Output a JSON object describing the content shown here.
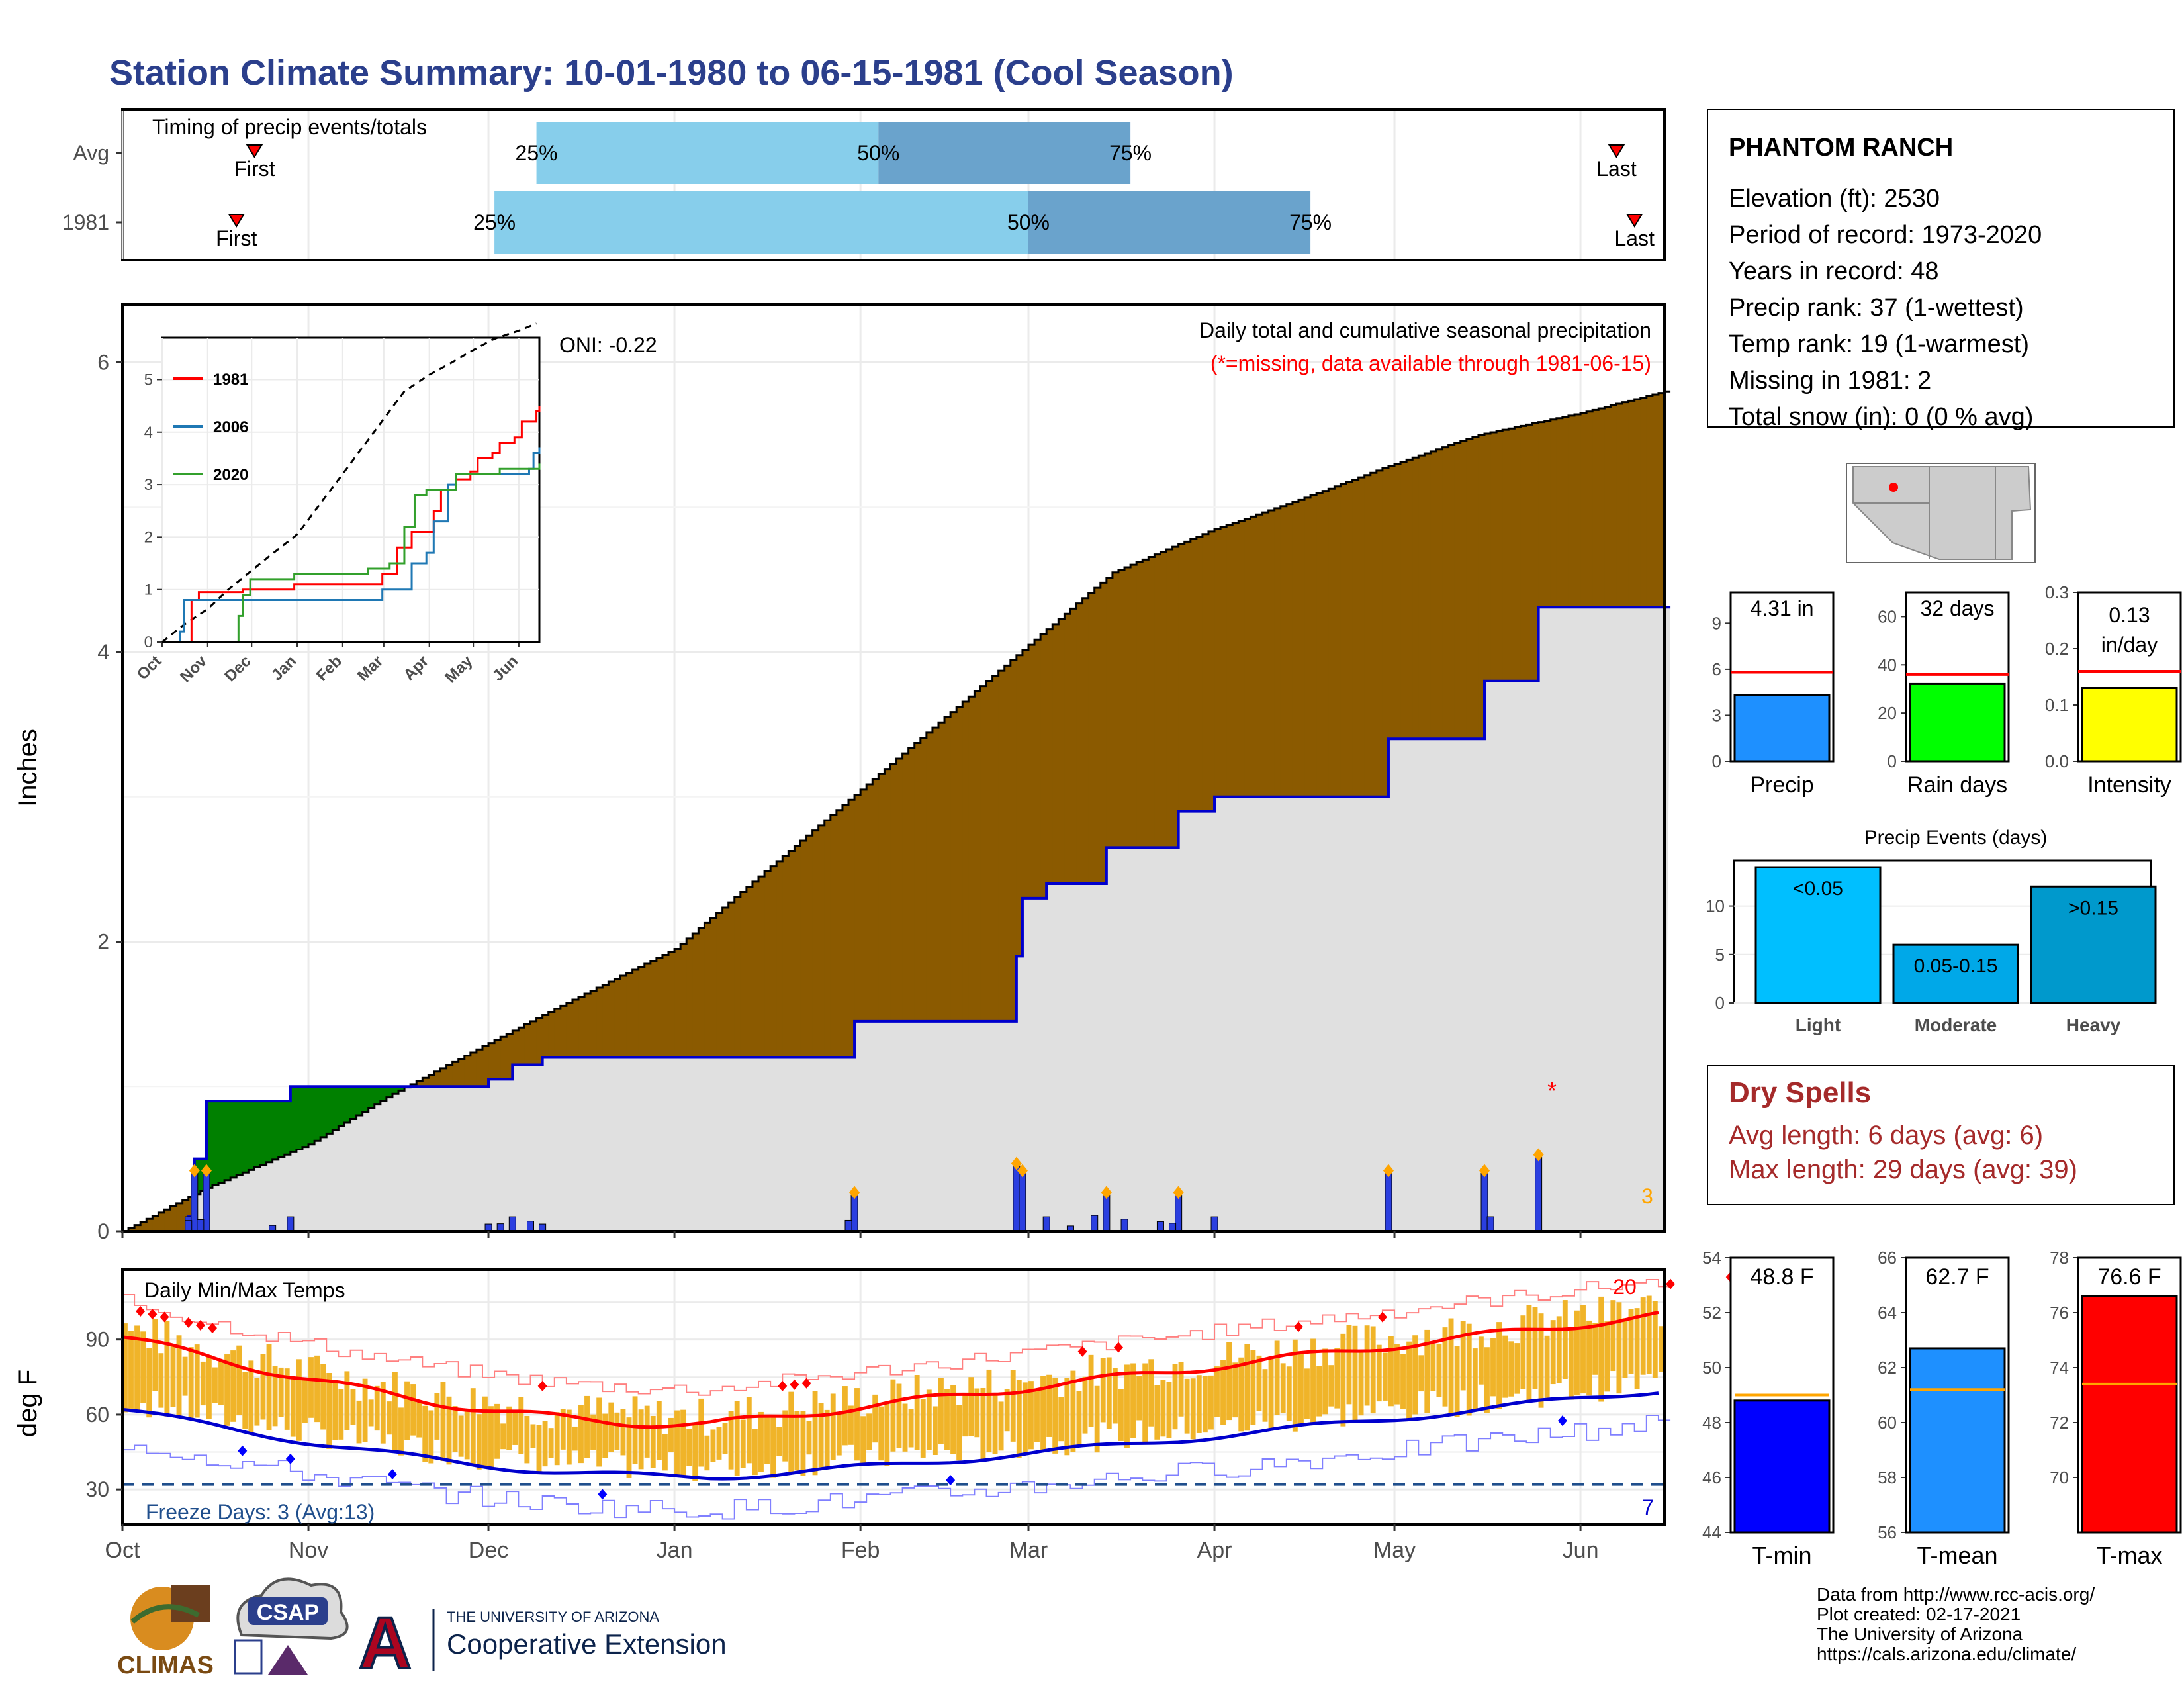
{
  "header": {
    "title": "Station Climate Summary: 10-01-1980 to 06-15-1981 (Cool Season)"
  },
  "colors": {
    "title": "#2b3f8c",
    "bar_light": "#87ceeb",
    "bar_dark": "#6aa3cc",
    "cum_fill": "#8b5a00",
    "cum_green": "#008000",
    "cum_grey": "#e0e0e0",
    "cum_blue": "#0000cd",
    "daily_bar": "#2b3fe0",
    "temp_bar": "#f0b429",
    "tmax_avg": "#ff0000",
    "tmin_avg": "#0000cd",
    "freeze_line": "#1f4e8c"
  },
  "timing_panel": {
    "caption": "Timing of precip events/totals",
    "rows": [
      {
        "label": "Avg",
        "first_label": "First",
        "last_label": "Last",
        "first": "10-23",
        "q25": "12-09",
        "q50": "02-04",
        "q75": "03-18",
        "last": "06-07",
        "pct_labels": [
          "25%",
          "50%",
          "75%"
        ]
      },
      {
        "label": "1981",
        "first_label": "First",
        "last_label": "Last",
        "first": "10-20",
        "q25": "12-02",
        "q50": "03-01",
        "q75": "04-17",
        "last": "06-10",
        "pct_labels": [
          "25%",
          "50%",
          "75%"
        ]
      }
    ]
  },
  "main_panel": {
    "ylabel": "Inches",
    "oni": "ONI: -0.22",
    "caption": "Daily total and cumulative seasonal precipitation",
    "missing_note": "(*=missing, data available through 1981-06-15)",
    "missing_count": "3",
    "y_ticks": [
      "0",
      "2",
      "4",
      "6"
    ]
  },
  "inset": {
    "legend": [
      "1981",
      "2006",
      "2020"
    ],
    "y_ticks": [
      "0",
      "1",
      "2",
      "3",
      "4",
      "5"
    ],
    "x_ticks": [
      "Oct",
      "Nov",
      "Dec",
      "Jan",
      "Feb",
      "Mar",
      "Apr",
      "May",
      "Jun"
    ]
  },
  "temp_panel": {
    "ylabel": "deg F",
    "caption": "Daily Min/Max Temps",
    "freeze_text": "Freeze Days: 3 (Avg:13)",
    "record_max_count": "20",
    "record_min_count": "7",
    "y_ticks": [
      "30",
      "60",
      "90"
    ]
  },
  "x_axis": {
    "months": [
      "Oct",
      "Nov",
      "Dec",
      "Jan",
      "Feb",
      "Mar",
      "Apr",
      "May",
      "Jun"
    ]
  },
  "station": {
    "name": "PHANTOM RANCH",
    "lines": [
      "Elevation (ft): 2530",
      "Period of record: 1973-2020",
      "Years in record: 48",
      "Precip rank: 37 (1-wettest)",
      "Temp rank: 19 (1-warmest)",
      "Missing in 1981: 2",
      "Total snow (in): 0 (0 % avg)"
    ]
  },
  "summary_bars": [
    {
      "label": "Precip",
      "value_text": "4.31 in",
      "value": 4.31,
      "avg": 5.8,
      "ymax": 11,
      "ticks": [
        "0",
        "3",
        "6",
        "9"
      ],
      "color": "#1e90ff"
    },
    {
      "label": "Rain days",
      "value_text": "32 days",
      "value": 32,
      "avg": 36,
      "ymax": 70,
      "ticks": [
        "0",
        "20",
        "40",
        "60"
      ],
      "color": "#00ff00"
    },
    {
      "label": "Intensity",
      "value_text": "0.13 in/day",
      "value": 0.13,
      "avg": 0.16,
      "ymax": 0.3,
      "ticks": [
        "0.0",
        "0.1",
        "0.2",
        "0.3"
      ],
      "color": "#ffff00"
    }
  ],
  "events": {
    "title": "Precip Events (days)",
    "ticks": [
      "0",
      "5",
      "10"
    ],
    "ymax": 14,
    "bars": [
      {
        "label": "Light",
        "inner": "<0.05",
        "value": 14,
        "color": "#00bfff"
      },
      {
        "label": "Moderate",
        "inner": "0.05-0.15",
        "value": 6,
        "color": "#00a8e8"
      },
      {
        "label": "Heavy",
        "inner": ">0.15",
        "value": 12,
        "color": "#0099cc"
      }
    ]
  },
  "dry_spells": {
    "title": "Dry Spells",
    "avg_line": "Avg length: 6 days (avg: 6)",
    "max_line": "Max length: 29 days (avg: 39)"
  },
  "temp_bars": [
    {
      "label": "T-min",
      "value_text": "48.8 F",
      "value": 48.8,
      "avg": 49.0,
      "min": 44,
      "max": 54,
      "ticks": [
        "44",
        "46",
        "48",
        "50",
        "52",
        "54"
      ],
      "color": "#0000ff"
    },
    {
      "label": "T-mean",
      "value_text": "62.7 F",
      "value": 62.7,
      "avg": 61.2,
      "min": 56,
      "max": 66,
      "ticks": [
        "56",
        "58",
        "60",
        "62",
        "64",
        "66"
      ],
      "color": "#1e90ff"
    },
    {
      "label": "T-max",
      "value_text": "76.6 F",
      "value": 76.6,
      "avg": 73.4,
      "min": 68,
      "max": 78,
      "ticks": [
        "70",
        "72",
        "74",
        "76",
        "78"
      ],
      "color": "#ff0000"
    }
  ],
  "footer": {
    "logos": [
      "CLIMAS",
      "CSAP",
      "THE UNIVERSITY OF ARIZONA",
      "Cooperative Extension"
    ],
    "credits": [
      "Data from http://www.rcc-acis.org/",
      "Plot created: 02-17-2021",
      "The University of Arizona",
      "https://cals.arizona.edu/climate/"
    ]
  },
  "chart_data": {
    "type": "area",
    "title": "Daily total and cumulative seasonal precipitation",
    "ylabel": "Inches",
    "ylim": [
      0,
      6.4
    ],
    "x_range": [
      "1980-10-01",
      "1981-06-15"
    ],
    "series": [
      {
        "name": "1981",
        "x": [
          "1980-10-01",
          "1980-10-12",
          "1980-10-13",
          "1980-10-15",
          "1980-10-29",
          "1980-12-01",
          "1980-12-05",
          "1980-12-10",
          "1981-01-31",
          "1981-02-01",
          "1981-02-27",
          "1981-02-28",
          "1981-03-04",
          "1981-03-10",
          "1981-03-14",
          "1981-03-21",
          "1981-03-26",
          "1981-04-01",
          "1981-04-30",
          "1981-05-16",
          "1981-05-25",
          "1981-06-15"
        ],
        "values": [
          0.0,
          0.1,
          0.5,
          0.9,
          1.0,
          1.05,
          1.15,
          1.2,
          1.45,
          1.45,
          1.9,
          2.3,
          2.4,
          2.4,
          2.65,
          2.65,
          2.9,
          3.0,
          3.4,
          3.8,
          4.31,
          4.31
        ]
      },
      {
        "name": "Avg",
        "x": [
          "1980-10-01",
          "1980-10-15",
          "1980-11-01",
          "1980-11-15",
          "1980-12-01",
          "1980-12-15",
          "1981-01-01",
          "1981-01-15",
          "1981-02-01",
          "1981-02-15",
          "1981-03-01",
          "1981-03-15",
          "1981-04-01",
          "1981-04-15",
          "1981-05-01",
          "1981-05-15",
          "1981-06-01",
          "1981-06-15"
        ],
        "values": [
          0.0,
          0.3,
          0.6,
          0.95,
          1.3,
          1.6,
          1.95,
          2.45,
          3.05,
          3.55,
          4.05,
          4.55,
          4.85,
          5.05,
          5.3,
          5.5,
          5.65,
          5.8
        ]
      }
    ]
  }
}
